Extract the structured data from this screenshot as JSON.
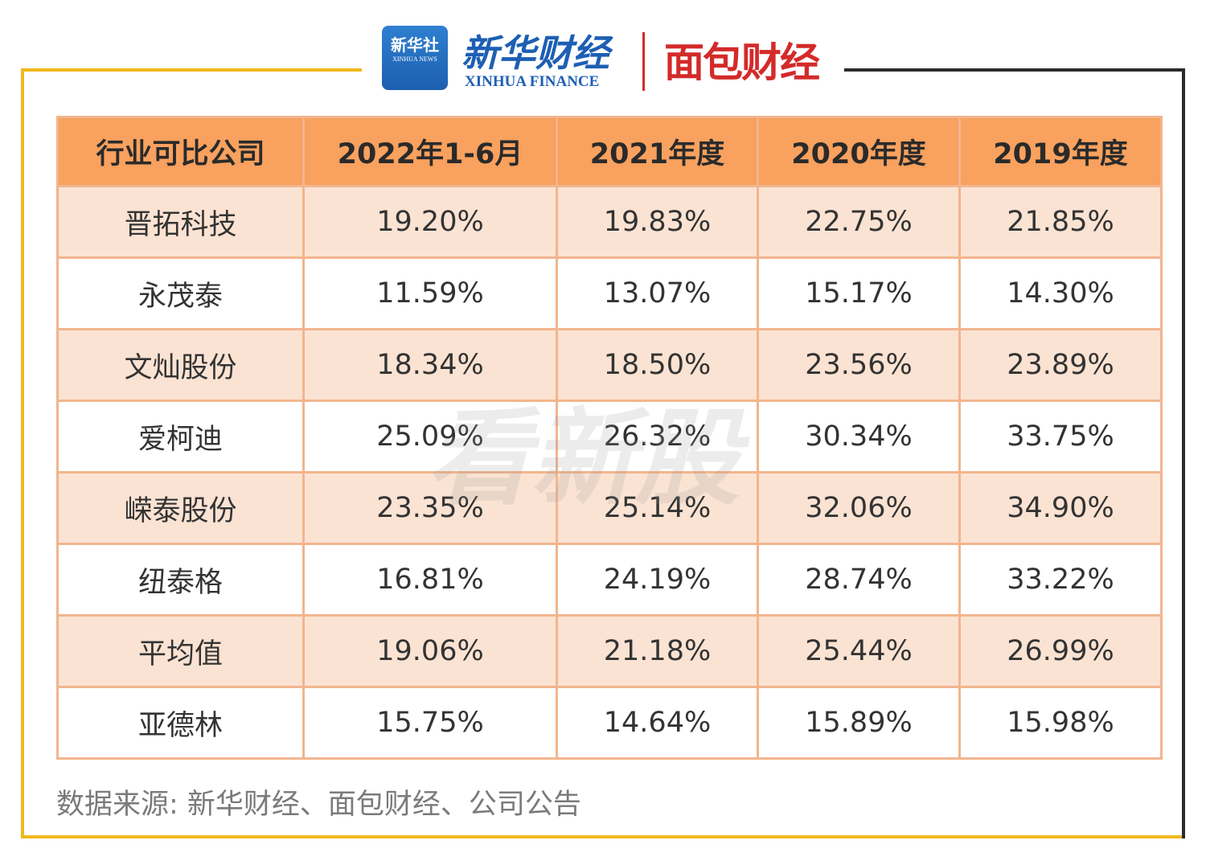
{
  "header": {
    "logo_xinhua": "新华社",
    "logo_xinhua_en": "XINHUA NEWS",
    "brand_cn": "新华财经",
    "brand_en": "XINHUA FINANCE",
    "partner": "面包财经"
  },
  "watermark": "看新股",
  "table": {
    "columns": [
      "行业可比公司",
      "2022年1-6月",
      "2021年度",
      "2020年度",
      "2019年度"
    ],
    "rows": [
      [
        "晋拓科技",
        "19.20%",
        "19.83%",
        "22.75%",
        "21.85%"
      ],
      [
        "永茂泰",
        "11.59%",
        "13.07%",
        "15.17%",
        "14.30%"
      ],
      [
        "文灿股份",
        "18.34%",
        "18.50%",
        "23.56%",
        "23.89%"
      ],
      [
        "爱柯迪",
        "25.09%",
        "26.32%",
        "30.34%",
        "33.75%"
      ],
      [
        "嵘泰股份",
        "23.35%",
        "25.14%",
        "32.06%",
        "34.90%"
      ],
      [
        "纽泰格",
        "16.81%",
        "24.19%",
        "28.74%",
        "33.22%"
      ],
      [
        "平均值",
        "19.06%",
        "21.18%",
        "25.44%",
        "26.99%"
      ],
      [
        "亚德林",
        "15.75%",
        "14.64%",
        "15.89%",
        "15.98%"
      ]
    ]
  },
  "source": "数据来源: 新华财经、面包财经、公司公告"
}
